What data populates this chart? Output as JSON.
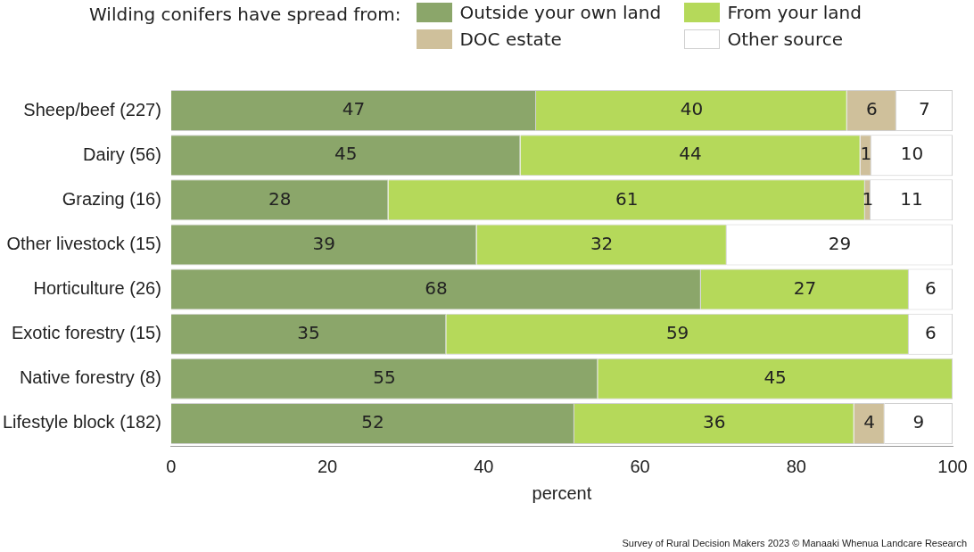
{
  "chart_data": {
    "type": "bar",
    "orientation": "horizontal",
    "stacked": true,
    "legend": "top",
    "legend_title": "Wilding conifers have spread from:",
    "categories": [
      "Sheep/beef (227)",
      "Dairy (56)",
      "Grazing (16)",
      "Other livestock (15)",
      "Horticulture (26)",
      "Exotic forestry (15)",
      "Native forestry (8)",
      "Lifestyle block (182)"
    ],
    "series": [
      {
        "name": "Outside your own land",
        "color": "#8ba66a",
        "values": [
          46.7,
          44.7,
          27.8,
          39.1,
          67.8,
          35.2,
          54.6,
          51.6
        ],
        "value_labels": [
          "47",
          "45",
          "28",
          "39",
          "68",
          "35",
          "55",
          "52"
        ]
      },
      {
        "name": "From your land",
        "color": "#b5d95a",
        "values": [
          39.8,
          43.5,
          61.0,
          32.0,
          26.6,
          59.2,
          45.4,
          35.8
        ],
        "value_labels": [
          "40",
          "44",
          "61",
          "32",
          "27",
          "59",
          "45",
          "36"
        ]
      },
      {
        "name": "DOC estate",
        "color": "#cfc09b",
        "values": [
          6.3,
          1.4,
          0.7,
          null,
          null,
          null,
          null,
          3.9
        ],
        "value_labels": [
          "6",
          "1",
          "1",
          null,
          null,
          null,
          null,
          "4"
        ]
      },
      {
        "name": "Other source",
        "color": "#ffffff",
        "values": [
          7.2,
          10.4,
          10.5,
          28.9,
          5.6,
          5.6,
          null,
          8.7
        ],
        "value_labels": [
          "7",
          "10",
          "11",
          "29",
          "6",
          "6",
          null,
          "9"
        ]
      }
    ],
    "xlim": [
      0,
      100
    ],
    "xticks": [
      0,
      20,
      40,
      60,
      80,
      100
    ],
    "xlabel": "percent",
    "grid": false,
    "annotations": [
      "Survey of Rural Decision Makers 2023 © Manaaki Whenua Landcare Research"
    ]
  }
}
